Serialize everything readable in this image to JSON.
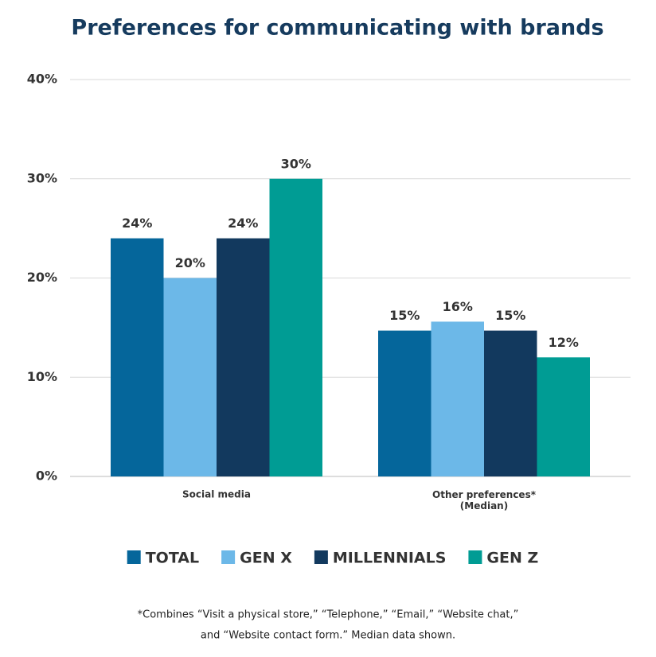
{
  "chart_data": {
    "type": "bar",
    "title": "Preferences for communicating with brands",
    "categories": [
      "Social media",
      "Other preferences*\n(Median)"
    ],
    "series": [
      {
        "name": "TOTAL",
        "color": "#05669b",
        "values": [
          24,
          14.7
        ],
        "value_labels": [
          "24%",
          "15%"
        ]
      },
      {
        "name": "GEN X",
        "color": "#6cb8e8",
        "values": [
          20,
          15.6
        ],
        "value_labels": [
          "20%",
          "16%"
        ]
      },
      {
        "name": "MILLENNIALS",
        "color": "#12395e",
        "values": [
          24,
          14.7
        ],
        "value_labels": [
          "24%",
          "15%"
        ]
      },
      {
        "name": "GEN Z",
        "color": "#009c94",
        "values": [
          30,
          12
        ],
        "value_labels": [
          "30%",
          "12%"
        ]
      }
    ],
    "ylim": [
      0,
      40
    ],
    "yticks": [
      {
        "value": 0,
        "label": "0%"
      },
      {
        "value": 10,
        "label": "10%"
      },
      {
        "value": 20,
        "label": "20%"
      },
      {
        "value": 30,
        "label": "30%"
      },
      {
        "value": 40,
        "label": "40%"
      }
    ],
    "grid": true,
    "footnote": [
      "*Combines “Visit a physical store,” “Telephone,” “Email,” “Website chat,”",
      "and “Website contact form.” Median data shown."
    ]
  }
}
